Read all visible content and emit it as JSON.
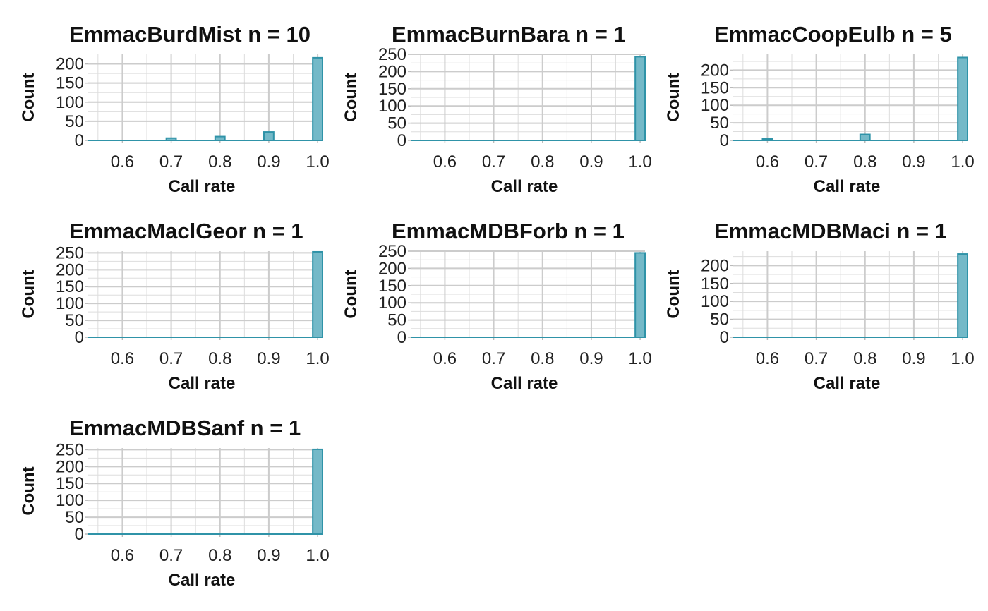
{
  "style": {
    "bar_fill": "#74b9c8",
    "bar_stroke": "#2f93a8",
    "grid_color": "#cccccc"
  },
  "chart_data": [
    {
      "type": "bar",
      "title": "EmmacBurdMist n = 10",
      "xlabel": "Call rate",
      "ylabel": "Count",
      "xlim": [
        0.53,
        1.01
      ],
      "ylim": [
        0,
        225
      ],
      "x_ticks": [
        "0.6",
        "0.7",
        "0.8",
        "0.9",
        "1.0"
      ],
      "y_ticks": [
        "0",
        "50",
        "100",
        "150",
        "200"
      ],
      "bars": [
        {
          "x": 0.7,
          "value": 6
        },
        {
          "x": 0.8,
          "value": 10
        },
        {
          "x": 0.9,
          "value": 22
        },
        {
          "x": 1.0,
          "value": 216
        }
      ]
    },
    {
      "type": "bar",
      "title": "EmmacBurnBara n = 1",
      "xlabel": "Call rate",
      "ylabel": "Count",
      "xlim": [
        0.53,
        1.01
      ],
      "ylim": [
        0,
        250
      ],
      "x_ticks": [
        "0.6",
        "0.7",
        "0.8",
        "0.9",
        "1.0"
      ],
      "y_ticks": [
        "0",
        "50",
        "100",
        "150",
        "200",
        "250"
      ],
      "bars": [
        {
          "x": 1.0,
          "value": 243
        }
      ]
    },
    {
      "type": "bar",
      "title": "EmmacCoopEulb n = 5",
      "xlabel": "Call rate",
      "ylabel": "Count",
      "xlim": [
        0.53,
        1.01
      ],
      "ylim": [
        0,
        245
      ],
      "x_ticks": [
        "0.6",
        "0.7",
        "0.8",
        "0.9",
        "1.0"
      ],
      "y_ticks": [
        "0",
        "50",
        "100",
        "150",
        "200"
      ],
      "bars": [
        {
          "x": 0.6,
          "value": 4
        },
        {
          "x": 0.8,
          "value": 17
        },
        {
          "x": 1.0,
          "value": 236
        }
      ]
    },
    {
      "type": "bar",
      "title": "EmmacMaclGeor n = 1",
      "xlabel": "Call rate",
      "ylabel": "Count",
      "xlim": [
        0.53,
        1.01
      ],
      "ylim": [
        0,
        255
      ],
      "x_ticks": [
        "0.6",
        "0.7",
        "0.8",
        "0.9",
        "1.0"
      ],
      "y_ticks": [
        "0",
        "50",
        "100",
        "150",
        "200",
        "250"
      ],
      "bars": [
        {
          "x": 1.0,
          "value": 253
        }
      ]
    },
    {
      "type": "bar",
      "title": "EmmacMDBForb n = 1",
      "xlabel": "Call rate",
      "ylabel": "Count",
      "xlim": [
        0.53,
        1.01
      ],
      "ylim": [
        0,
        250
      ],
      "x_ticks": [
        "0.6",
        "0.7",
        "0.8",
        "0.9",
        "1.0"
      ],
      "y_ticks": [
        "0",
        "50",
        "100",
        "150",
        "200",
        "250"
      ],
      "bars": [
        {
          "x": 1.0,
          "value": 245
        }
      ]
    },
    {
      "type": "bar",
      "title": "EmmacMDBMaci n = 1",
      "xlabel": "Call rate",
      "ylabel": "Count",
      "xlim": [
        0.53,
        1.01
      ],
      "ylim": [
        0,
        240
      ],
      "x_ticks": [
        "0.6",
        "0.7",
        "0.8",
        "0.9",
        "1.0"
      ],
      "y_ticks": [
        "0",
        "50",
        "100",
        "150",
        "200"
      ],
      "bars": [
        {
          "x": 1.0,
          "value": 232
        }
      ]
    },
    {
      "type": "bar",
      "title": "EmmacMDBSanf n = 1",
      "xlabel": "Call rate",
      "ylabel": "Count",
      "xlim": [
        0.53,
        1.01
      ],
      "ylim": [
        0,
        255
      ],
      "x_ticks": [
        "0.6",
        "0.7",
        "0.8",
        "0.9",
        "1.0"
      ],
      "y_ticks": [
        "0",
        "50",
        "100",
        "150",
        "200",
        "250"
      ],
      "bars": [
        {
          "x": 1.0,
          "value": 251
        }
      ]
    }
  ]
}
